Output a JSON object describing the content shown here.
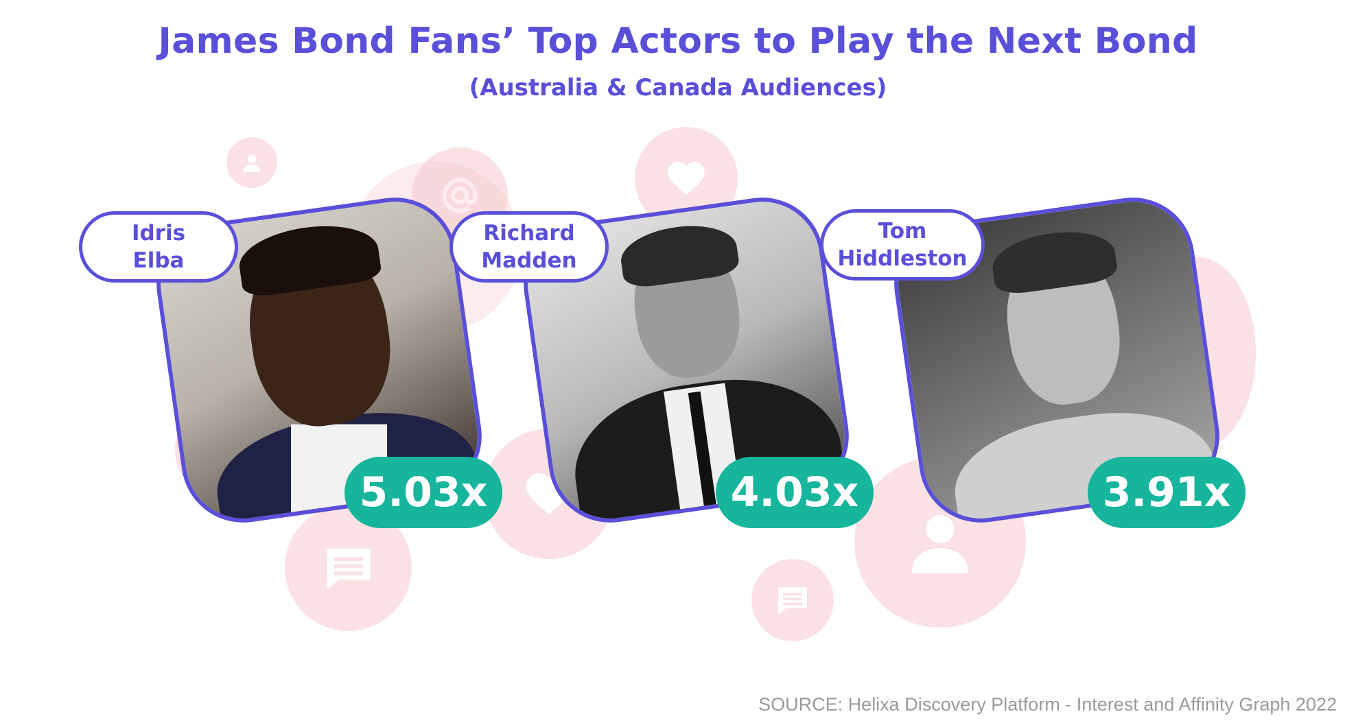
{
  "header": {
    "title": "James Bond Fans’ Top Actors to Play the Next Bond",
    "subtitle": "(Australia & Canada Audiences)"
  },
  "actors": [
    {
      "first": "Idris",
      "last": "Elba",
      "score": "5.03x",
      "photo": "idris-elba-portrait"
    },
    {
      "first": "Richard",
      "last": "Madden",
      "score": "4.03x",
      "photo": "richard-madden-portrait"
    },
    {
      "first": "Tom",
      "last": "Hiddleston",
      "score": "3.91x",
      "photo": "tom-hiddleston-portrait"
    }
  ],
  "footer": {
    "source": "SOURCE: Helixa Discovery Platform - Interest and Affinity Graph 2022"
  },
  "colors": {
    "accent": "#5a4fd8",
    "score_bg": "#16b59c",
    "bubble": "#f6c9cf",
    "source_text": "#9a9a9a"
  },
  "icons": [
    "user-icon",
    "at-icon",
    "heart-icon",
    "chat-icon"
  ]
}
